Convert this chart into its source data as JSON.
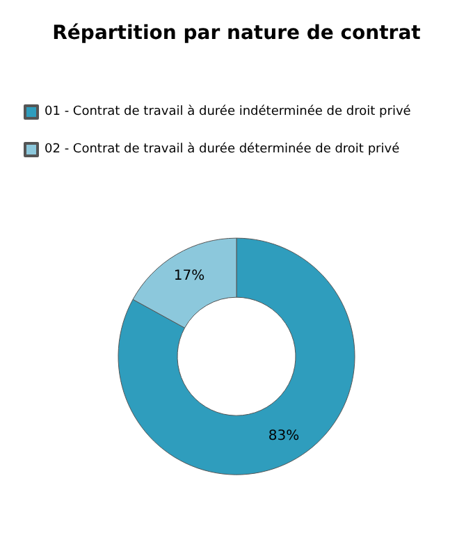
{
  "chart_data": {
    "type": "donut",
    "title": "Répartition par nature de contrat",
    "categories": [
      "01 - Contrat de travail à durée indéterminée de droit privé",
      "02 - Contrat de travail à durée déterminée de droit privé"
    ],
    "values": [
      83,
      17
    ],
    "value_labels": [
      "83%",
      "17%"
    ],
    "colors": [
      "#2f9dbd",
      "#8cc8dc"
    ],
    "legend": "top"
  }
}
